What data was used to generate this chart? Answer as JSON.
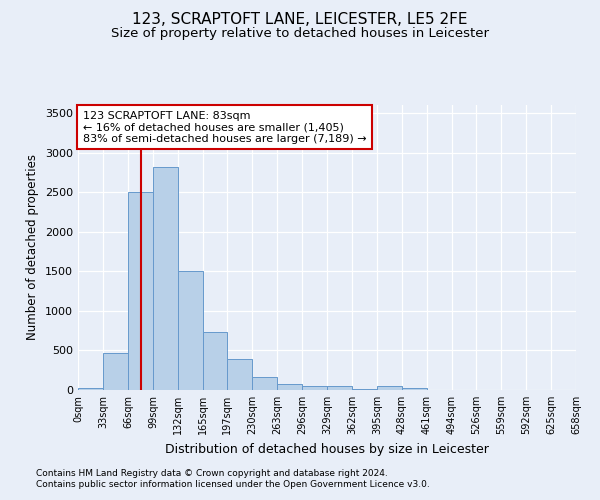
{
  "title": "123, SCRAPTOFT LANE, LEICESTER, LE5 2FE",
  "subtitle": "Size of property relative to detached houses in Leicester",
  "xlabel": "Distribution of detached houses by size in Leicester",
  "ylabel": "Number of detached properties",
  "footnote1": "Contains HM Land Registry data © Crown copyright and database right 2024.",
  "footnote2": "Contains public sector information licensed under the Open Government Licence v3.0.",
  "annotation_line1": "123 SCRAPTOFT LANE: 83sqm",
  "annotation_line2": "← 16% of detached houses are smaller (1,405)",
  "annotation_line3": "83% of semi-detached houses are larger (7,189) →",
  "bar_edges": [
    0,
    33,
    66,
    99,
    132,
    165,
    197,
    230,
    263,
    296,
    329,
    362,
    395,
    428,
    461,
    494,
    526,
    559,
    592,
    625,
    658
  ],
  "bar_heights": [
    20,
    470,
    2500,
    2820,
    1500,
    730,
    390,
    165,
    75,
    55,
    45,
    10,
    45,
    30,
    5,
    5,
    5,
    5,
    5,
    2
  ],
  "bar_color": "#b8d0e8",
  "bar_edge_color": "#6699cc",
  "property_line_x": 83,
  "property_line_color": "#cc0000",
  "annotation_box_color": "#cc0000",
  "annotation_bg": "#ffffff",
  "ylim": [
    0,
    3600
  ],
  "yticks": [
    0,
    500,
    1000,
    1500,
    2000,
    2500,
    3000,
    3500
  ],
  "bg_color": "#e8eef8",
  "plot_bg": "#e8eef8",
  "grid_color": "#ffffff",
  "title_fontsize": 11,
  "subtitle_fontsize": 9.5
}
